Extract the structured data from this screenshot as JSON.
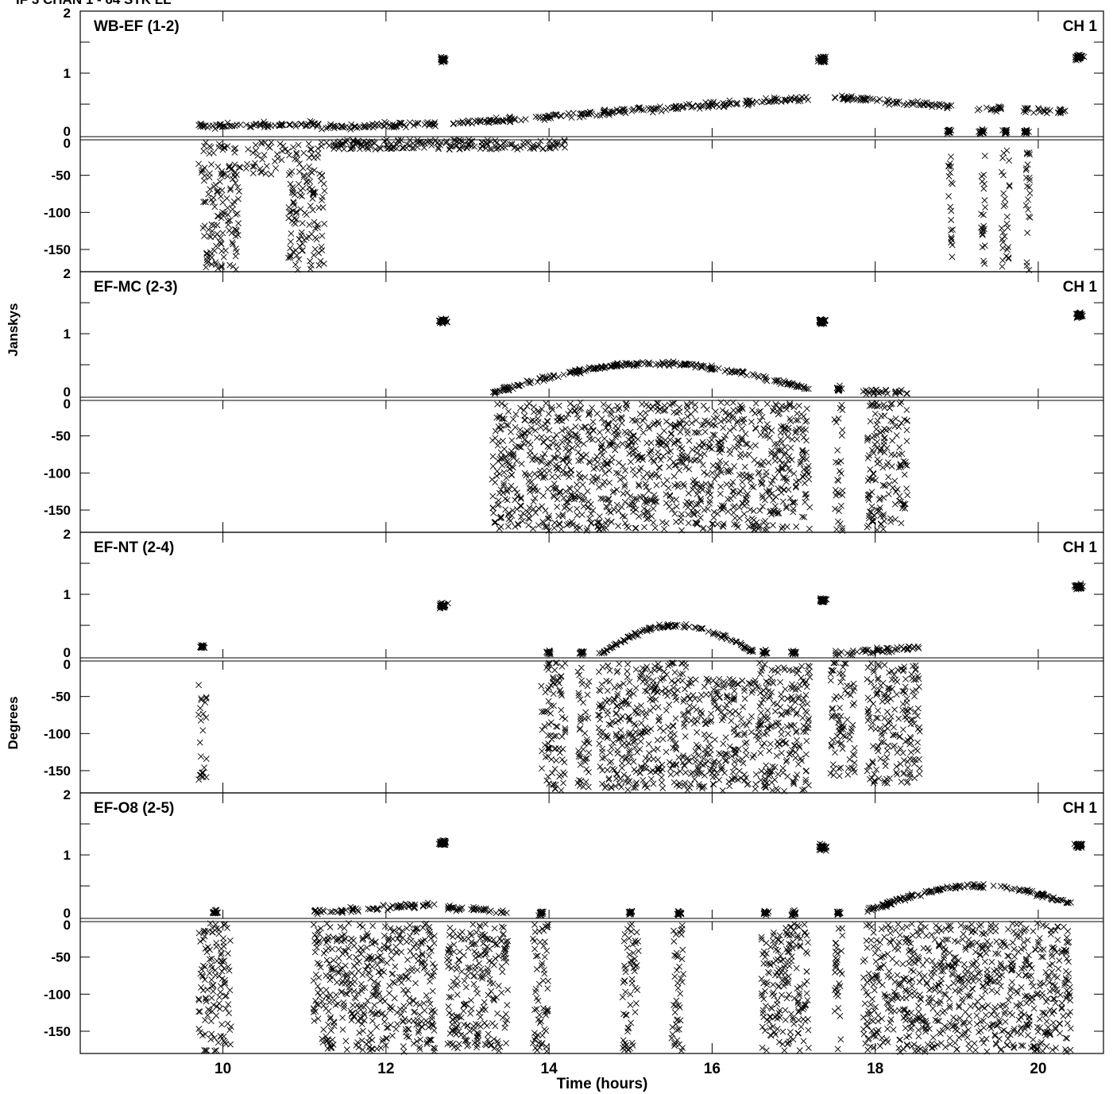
{
  "header": {
    "title": "IF 3 CHAN 1 - 64 STK LL"
  },
  "chart_data": {
    "type": "scatter",
    "marker": "x",
    "color": "#000000",
    "ylabel_top": "Janskys",
    "ylabel_bottom": "Degrees",
    "xlabel": "Time (hours)",
    "xlim": [
      8.25,
      20.8
    ],
    "xticks": [
      "10",
      "12",
      "14",
      "16",
      "18",
      "20"
    ],
    "amp_ylim": [
      -0.05,
      2
    ],
    "amp_ticks": [
      "2",
      "1",
      "0"
    ],
    "phase_ylim": [
      -180,
      0
    ],
    "phase_ticks": [
      "0",
      "-50",
      "-100",
      "-150"
    ],
    "panels": [
      {
        "label": "WB-EF (1-2)",
        "channel": "CH 1",
        "amplitude": {
          "calibrator_clusters": [
            {
              "x": 12.7,
              "y": 1.22
            },
            {
              "x": 17.35,
              "y": 1.22
            },
            {
              "x": 20.5,
              "y": 1.26
            }
          ],
          "trends": [
            {
              "x": [
                9.7,
                11.2
              ],
              "y": [
                0.14,
                0.18
              ]
            },
            {
              "x": [
                11.2,
                12.65
              ],
              "y": [
                0.13,
                0.18
              ]
            },
            {
              "x": [
                12.75,
                17.2
              ],
              "y": [
                0.18,
                0.6
              ]
            },
            {
              "x": [
                17.5,
                18.95
              ],
              "y": [
                0.62,
                0.46
              ]
            },
            {
              "x": [
                19.25,
                19.55
              ],
              "y": [
                0.43,
                0.43
              ]
            },
            {
              "x": [
                19.8,
                20.35
              ],
              "y": [
                0.42,
                0.38
              ]
            }
          ],
          "baseline_clusters": [
            {
              "x": 18.9,
              "y": 0.06
            },
            {
              "x": 19.3,
              "y": 0.06
            },
            {
              "x": 19.6,
              "y": 0.06
            },
            {
              "x": 19.85,
              "y": 0.06
            }
          ]
        },
        "phase": {
          "bands": [
            {
              "x": [
                9.7,
                11.2
              ],
              "y": [
                -50,
                -5
              ]
            },
            {
              "x": [
                11.2,
                14.2
              ],
              "y": [
                -15,
                -2
              ]
            }
          ],
          "scatter_ranges": [
            {
              "x": [
                9.75,
                10.2
              ],
              "y": [
                -180,
                -40
              ]
            },
            {
              "x": [
                10.8,
                11.25
              ],
              "y": [
                -180,
                -40
              ]
            },
            {
              "x": [
                18.9,
                18.95
              ],
              "y": [
                -170,
                -10
              ]
            },
            {
              "x": [
                19.3,
                19.35
              ],
              "y": [
                -180,
                -10
              ]
            },
            {
              "x": [
                19.55,
                19.65
              ],
              "y": [
                -180,
                -10
              ]
            },
            {
              "x": [
                19.85,
                19.9
              ],
              "y": [
                -180,
                -10
              ]
            }
          ]
        }
      },
      {
        "label": "EF-MC (2-3)",
        "channel": "CH 1",
        "amplitude": {
          "calibrator_clusters": [
            {
              "x": 12.7,
              "y": 1.2
            },
            {
              "x": 17.35,
              "y": 1.2
            },
            {
              "x": 20.5,
              "y": 1.3
            }
          ],
          "arcs": [
            {
              "x": [
                13.3,
                17.2
              ],
              "peak_x": 15.3,
              "y_start": 0.05,
              "y_peak": 0.52,
              "y_end": 0.1
            }
          ],
          "trends": [
            {
              "x": [
                17.85,
                18.4
              ],
              "y": [
                0.06,
                0.06
              ]
            }
          ],
          "baseline_clusters": [
            {
              "x": 17.55,
              "y": 0.12
            }
          ]
        },
        "phase": {
          "scatter_ranges": [
            {
              "x": [
                13.3,
                17.2
              ],
              "y": [
                -180,
                0
              ]
            },
            {
              "x": [
                17.5,
                17.6
              ],
              "y": [
                -180,
                0
              ]
            },
            {
              "x": [
                17.9,
                18.4
              ],
              "y": [
                -180,
                0
              ]
            }
          ]
        }
      },
      {
        "label": "EF-NT (2-4)",
        "channel": "CH 1",
        "amplitude": {
          "calibrator_clusters": [
            {
              "x": 12.7,
              "y": 0.82
            },
            {
              "x": 17.35,
              "y": 0.9
            },
            {
              "x": 20.5,
              "y": 1.12
            }
          ],
          "arcs": [
            {
              "x": [
                14.6,
                16.5
              ],
              "peak_x": 15.55,
              "y_start": 0.02,
              "y_peak": 0.5,
              "y_end": 0.08
            }
          ],
          "trends": [
            {
              "x": [
                17.5,
                18.55
              ],
              "y": [
                0.05,
                0.14
              ]
            }
          ],
          "baseline_clusters": [
            {
              "x": 9.75,
              "y": 0.15
            },
            {
              "x": 14.0,
              "y": 0.05
            },
            {
              "x": 14.4,
              "y": 0.05
            },
            {
              "x": 16.65,
              "y": 0.06
            },
            {
              "x": 17.0,
              "y": 0.06
            }
          ]
        },
        "phase": {
          "scatter_ranges": [
            {
              "x": [
                9.7,
                9.8
              ],
              "y": [
                -170,
                -20
              ]
            },
            {
              "x": [
                13.9,
                14.2
              ],
              "y": [
                -180,
                0
              ]
            },
            {
              "x": [
                14.35,
                14.5
              ],
              "y": [
                -180,
                0
              ]
            },
            {
              "x": [
                14.6,
                15.7
              ],
              "y": [
                -180,
                0
              ]
            },
            {
              "x": [
                15.7,
                16.5
              ],
              "y": [
                -180,
                -20
              ]
            },
            {
              "x": [
                16.5,
                16.8
              ],
              "y": [
                -180,
                0
              ]
            },
            {
              "x": [
                16.8,
                17.2
              ],
              "y": [
                -180,
                0
              ]
            },
            {
              "x": [
                17.45,
                17.75
              ],
              "y": [
                -160,
                0
              ]
            },
            {
              "x": [
                17.9,
                18.55
              ],
              "y": [
                -170,
                0
              ]
            }
          ]
        }
      },
      {
        "label": "EF-O8 (2-5)",
        "channel": "CH 1",
        "amplitude": {
          "calibrator_clusters": [
            {
              "x": 12.7,
              "y": 1.2
            },
            {
              "x": 17.35,
              "y": 1.12
            },
            {
              "x": 20.5,
              "y": 1.15
            }
          ],
          "arcs": [
            {
              "x": [
                17.9,
                20.4
              ],
              "peak_x": 19.3,
              "y_start": 0.1,
              "y_peak": 0.5,
              "y_end": 0.22
            }
          ],
          "trends": [
            {
              "x": [
                11.1,
                12.6
              ],
              "y": [
                0.08,
                0.2
              ]
            },
            {
              "x": [
                12.75,
                13.5
              ],
              "y": [
                0.15,
                0.08
              ]
            }
          ],
          "baseline_clusters": [
            {
              "x": 9.9,
              "y": 0.08
            },
            {
              "x": 13.9,
              "y": 0.06
            },
            {
              "x": 15.0,
              "y": 0.06
            },
            {
              "x": 15.6,
              "y": 0.06
            },
            {
              "x": 16.65,
              "y": 0.06
            },
            {
              "x": 17.0,
              "y": 0.06
            },
            {
              "x": 17.55,
              "y": 0.06
            }
          ]
        },
        "phase": {
          "scatter_ranges": [
            {
              "x": [
                9.7,
                10.1
              ],
              "y": [
                -180,
                0
              ]
            },
            {
              "x": [
                11.1,
                12.6
              ],
              "y": [
                -180,
                0
              ]
            },
            {
              "x": [
                12.75,
                13.5
              ],
              "y": [
                -180,
                0
              ]
            },
            {
              "x": [
                13.8,
                14.0
              ],
              "y": [
                -180,
                0
              ]
            },
            {
              "x": [
                14.9,
                15.1
              ],
              "y": [
                -180,
                0
              ]
            },
            {
              "x": [
                15.5,
                15.65
              ],
              "y": [
                -180,
                0
              ]
            },
            {
              "x": [
                16.6,
                16.8
              ],
              "y": [
                -180,
                0
              ]
            },
            {
              "x": [
                16.8,
                17.2
              ],
              "y": [
                -180,
                0
              ]
            },
            {
              "x": [
                17.5,
                17.6
              ],
              "y": [
                -180,
                0
              ]
            },
            {
              "x": [
                17.85,
                20.4
              ],
              "y": [
                -180,
                0
              ]
            }
          ]
        }
      }
    ]
  }
}
